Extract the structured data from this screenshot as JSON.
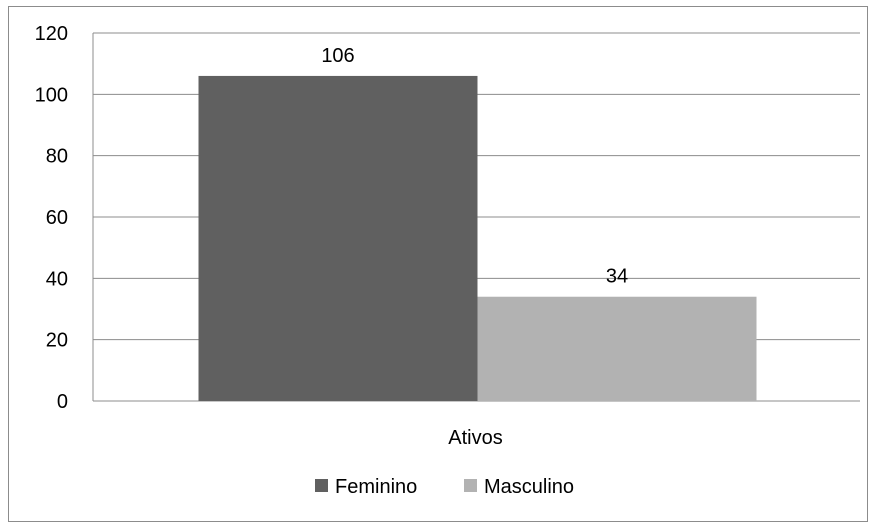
{
  "chart_data": {
    "type": "bar",
    "categories": [
      "Ativos"
    ],
    "series": [
      {
        "name": "Feminino",
        "values": [
          106
        ],
        "color": "#606060"
      },
      {
        "name": "Masculino",
        "values": [
          34
        ],
        "color": "#b2b2b2"
      }
    ],
    "title": "",
    "xlabel": "",
    "ylabel": "",
    "ylim": [
      0,
      120
    ],
    "yticks": [
      "0",
      "20",
      "40",
      "60",
      "80",
      "100",
      "120"
    ],
    "data_labels": [
      "106",
      "34"
    ],
    "grid": true,
    "legend_position": "bottom"
  }
}
